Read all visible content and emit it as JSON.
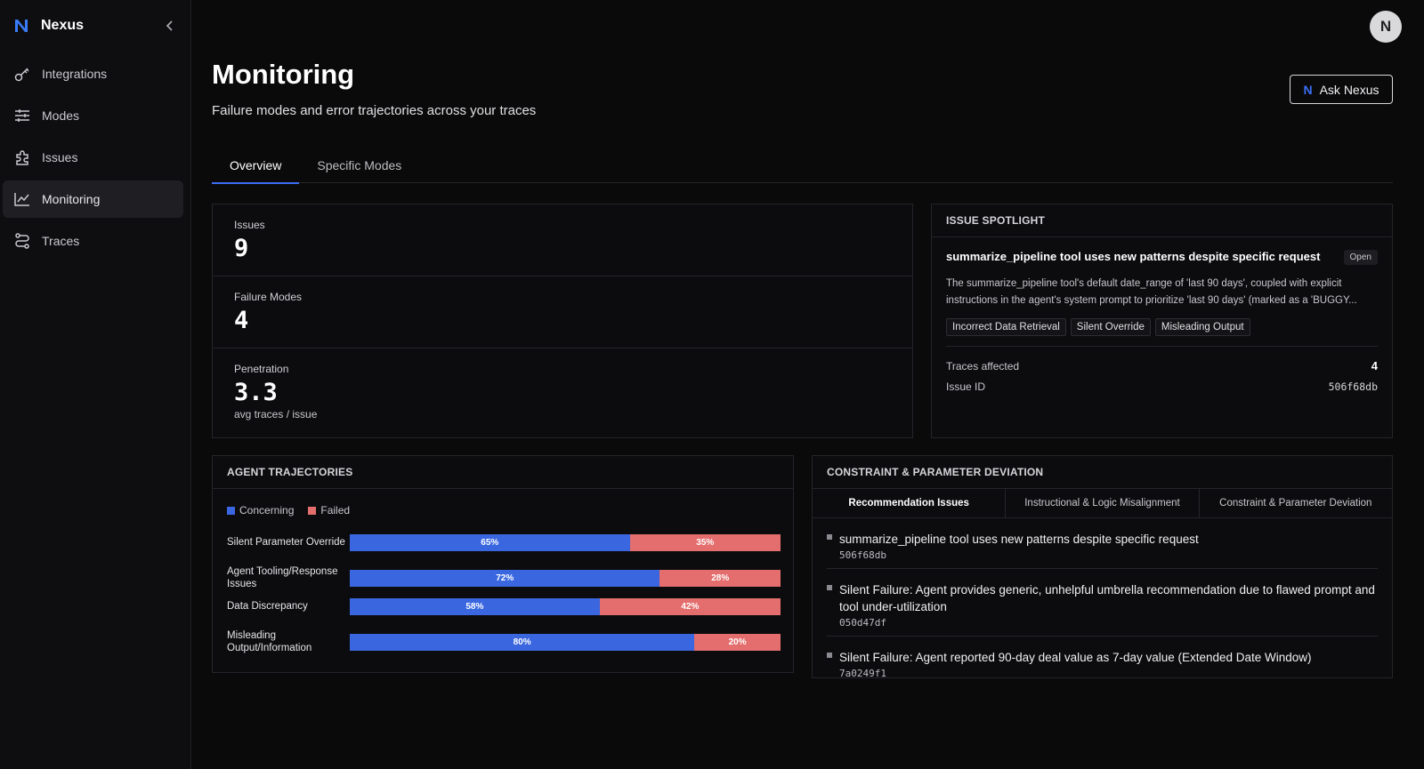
{
  "app": {
    "name": "Nexus",
    "avatar_initial": "N"
  },
  "sidebar": {
    "items": [
      {
        "label": "Integrations",
        "icon": "key-icon"
      },
      {
        "label": "Modes",
        "icon": "sliders-icon"
      },
      {
        "label": "Issues",
        "icon": "puzzle-icon"
      },
      {
        "label": "Monitoring",
        "icon": "chart-line-icon",
        "active": true
      },
      {
        "label": "Traces",
        "icon": "route-icon"
      }
    ]
  },
  "header": {
    "title": "Monitoring",
    "subtitle": "Failure modes and error trajectories across your traces",
    "ask_button": "Ask Nexus"
  },
  "tabs": [
    {
      "label": "Overview",
      "active": true
    },
    {
      "label": "Specific Modes"
    }
  ],
  "stats": {
    "issues": {
      "label": "Issues",
      "value": "9"
    },
    "failure_modes": {
      "label": "Failure Modes",
      "value": "4"
    },
    "penetration": {
      "label": "Penetration",
      "value": "3.3",
      "sub": "avg traces / issue"
    }
  },
  "spotlight": {
    "heading": "ISSUE SPOTLIGHT",
    "title": "summarize_pipeline tool uses new patterns despite specific request",
    "status": "Open",
    "description": "The summarize_pipeline tool's default date_range of 'last 90 days', coupled with explicit instructions in the agent's system prompt to prioritize 'last 90 days' (marked as a 'BUGGY...",
    "tags": [
      "Incorrect Data Retrieval",
      "Silent Override",
      "Misleading Output"
    ],
    "traces_affected_label": "Traces affected",
    "traces_affected": "4",
    "issue_id_label": "Issue ID",
    "issue_id": "506f68db"
  },
  "trajectories": {
    "heading": "AGENT TRAJECTORIES",
    "legend": {
      "concerning": "Concerning",
      "failed": "Failed"
    },
    "colors": {
      "concerning": "#3a67e0",
      "failed": "#e46e6e"
    },
    "rows": [
      {
        "label": "Silent Parameter Override",
        "concerning": 65,
        "failed": 35,
        "c_text": "65%",
        "f_text": "35%"
      },
      {
        "label": "Agent Tooling/Response Issues",
        "concerning": 72,
        "failed": 28,
        "c_text": "72%",
        "f_text": "28%"
      },
      {
        "label": "Data Discrepancy",
        "concerning": 58,
        "failed": 42,
        "c_text": "58%",
        "f_text": "42%"
      },
      {
        "label": "Misleading Output/Information",
        "concerning": 80,
        "failed": 20,
        "c_text": "80%",
        "f_text": "20%"
      }
    ]
  },
  "deviation": {
    "heading": "CONSTRAINT & PARAMETER DEVIATION",
    "subtabs": [
      {
        "label": "Recommendation Issues",
        "active": true
      },
      {
        "label": "Instructional & Logic Misalignment"
      },
      {
        "label": "Constraint & Parameter Deviation"
      }
    ],
    "items": [
      {
        "title": "summarize_pipeline tool uses new patterns despite specific request",
        "id": "506f68db"
      },
      {
        "title": "Silent Failure: Agent provides generic, unhelpful umbrella recommendation due to flawed prompt and tool under-utilization",
        "id": "050d47df"
      },
      {
        "title": "Silent Failure: Agent reported 90-day deal value as 7-day value (Extended Date Window)",
        "id": "7a0249f1"
      }
    ]
  }
}
